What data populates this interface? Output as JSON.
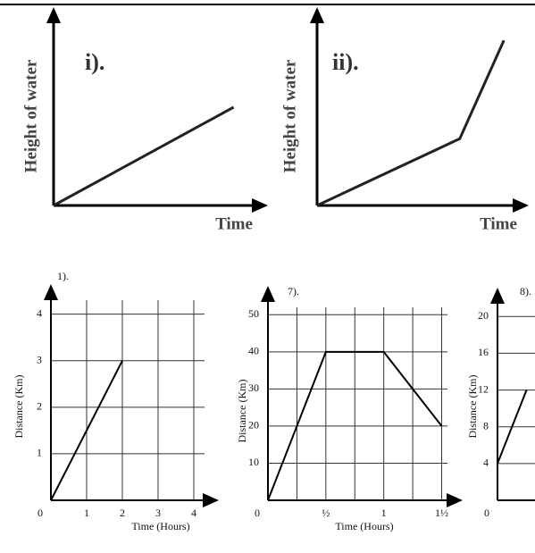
{
  "chart_data": [
    {
      "type": "line",
      "title": "i).",
      "xlabel": "Time",
      "ylabel": "Height of water",
      "x": [
        0,
        8.4
      ],
      "values": [
        0,
        5
      ],
      "xlim": [
        0,
        10
      ],
      "ylim": [
        0,
        10
      ],
      "color": "#222"
    },
    {
      "type": "line",
      "title": "ii).",
      "xlabel": "Time",
      "ylabel": "Height of water",
      "x": [
        0,
        6.8,
        8.9
      ],
      "values": [
        0,
        3.4,
        8.4
      ],
      "xlim": [
        0,
        10
      ],
      "ylim": [
        0,
        10
      ],
      "color": "#222"
    },
    {
      "type": "line",
      "title": "1).",
      "xlabel": "Time (Hours)",
      "ylabel": "Distance (Km)",
      "x": [
        0,
        2
      ],
      "values": [
        0,
        3
      ],
      "xlim": [
        0,
        4.3
      ],
      "ylim": [
        0,
        4.3
      ],
      "xticks": [
        0,
        1,
        2,
        3,
        4
      ],
      "yticks": [
        1,
        2,
        3,
        4
      ],
      "grid": true,
      "color": "#000"
    },
    {
      "type": "line",
      "title": "7).",
      "xlabel": "Time (Hours)",
      "ylabel": "Distance (Km)",
      "x": [
        0,
        0.5,
        1,
        1.5
      ],
      "values": [
        0,
        40,
        40,
        20
      ],
      "xlim": [
        0,
        1.55
      ],
      "ylim": [
        0,
        52
      ],
      "xticks": [
        0,
        {
          "value": 0.5,
          "label": "½"
        },
        1,
        {
          "value": 1.5,
          "label": "1½"
        }
      ],
      "xminor": [
        0.25,
        0.75,
        1.25
      ],
      "yticks": [
        10,
        20,
        30,
        40,
        50
      ],
      "grid": true,
      "color": "#000"
    },
    {
      "type": "line",
      "title": "8).",
      "ylabel": "Distance (Km)",
      "x": [
        0,
        0.25
      ],
      "values": [
        4,
        12
      ],
      "xlim": [
        0,
        0.5
      ],
      "ylim": [
        0,
        21
      ],
      "xticks": [
        0
      ],
      "yticks": [
        4,
        8,
        12,
        16,
        20
      ],
      "grid": true,
      "color": "#000"
    }
  ]
}
